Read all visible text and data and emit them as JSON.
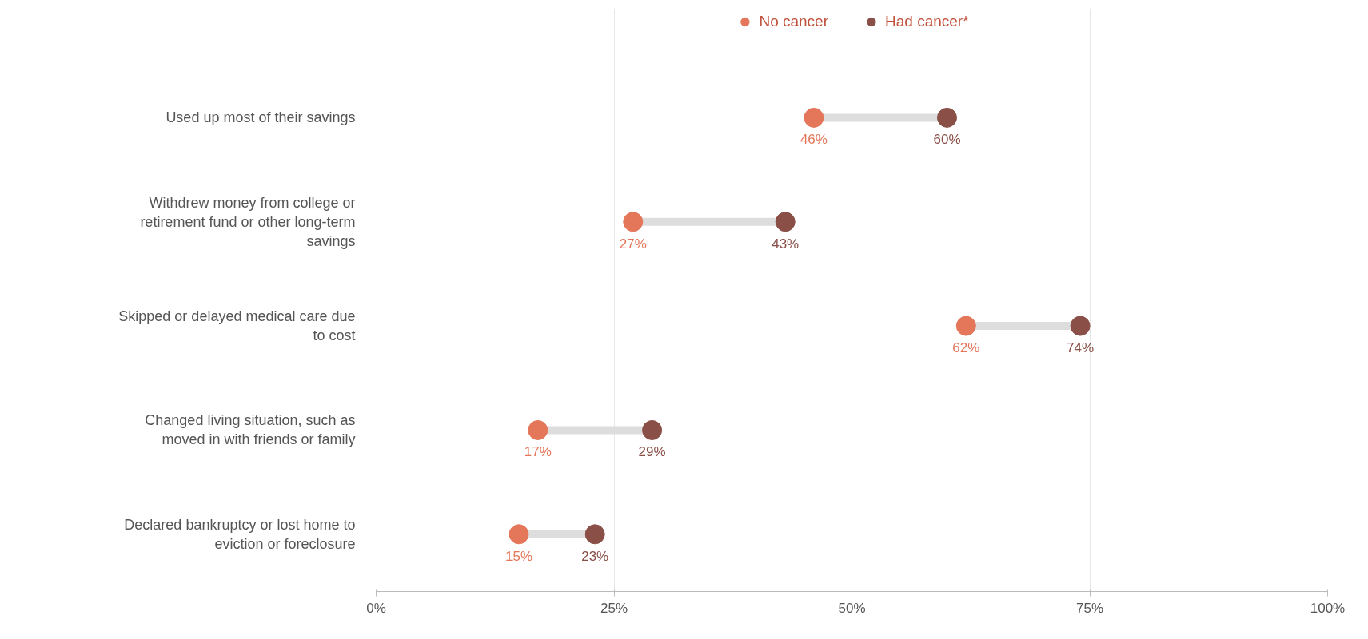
{
  "chart_data": {
    "type": "scatter",
    "orientation": "horizontal",
    "categories": [
      "Used up most of their savings",
      "Withdrew money from college or retirement fund or other long-term savings",
      "Skipped or delayed medical care due to cost",
      "Changed living situation, such as moved in with friends or family",
      "Declared bankruptcy or lost home to eviction or foreclosure"
    ],
    "series": [
      {
        "name": "No cancer",
        "color": "#e4765a",
        "values": [
          46,
          27,
          62,
          17,
          15
        ],
        "value_labels": [
          "46%",
          "27%",
          "62%",
          "17%",
          "15%"
        ]
      },
      {
        "name": "Had cancer*",
        "color": "#8a4f47",
        "values": [
          60,
          43,
          74,
          29,
          23
        ],
        "value_labels": [
          "60%",
          "43%",
          "74%",
          "29%",
          "23%"
        ]
      }
    ],
    "xlim": [
      0,
      100
    ],
    "xticks": [
      {
        "value": 0,
        "label": "0%"
      },
      {
        "value": 25,
        "label": "25%"
      },
      {
        "value": 50,
        "label": "50%"
      },
      {
        "value": 75,
        "label": "75%"
      },
      {
        "value": 100,
        "label": "100%"
      }
    ],
    "grid": "x",
    "legend": "top",
    "marker": "circle"
  }
}
